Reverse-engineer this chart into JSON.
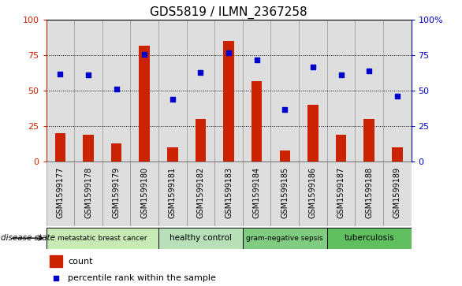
{
  "title": "GDS5819 / ILMN_2367258",
  "samples": [
    "GSM1599177",
    "GSM1599178",
    "GSM1599179",
    "GSM1599180",
    "GSM1599181",
    "GSM1599182",
    "GSM1599183",
    "GSM1599184",
    "GSM1599185",
    "GSM1599186",
    "GSM1599187",
    "GSM1599188",
    "GSM1599189"
  ],
  "counts": [
    20,
    19,
    13,
    82,
    10,
    30,
    85,
    57,
    8,
    40,
    19,
    30,
    10
  ],
  "percentiles": [
    62,
    61,
    51,
    76,
    44,
    63,
    77,
    72,
    37,
    67,
    61,
    64,
    46
  ],
  "disease_groups": [
    {
      "label": "metastatic breast cancer",
      "start": 0,
      "end": 4,
      "color": "#c8eab4"
    },
    {
      "label": "healthy control",
      "start": 4,
      "end": 7,
      "color": "#b8e0b8"
    },
    {
      "label": "gram-negative sepsis",
      "start": 7,
      "end": 10,
      "color": "#80cc80"
    },
    {
      "label": "tuberculosis",
      "start": 10,
      "end": 13,
      "color": "#60c060"
    }
  ],
  "bar_color": "#cc2200",
  "dot_color": "#0000cc",
  "ylim": [
    0,
    100
  ],
  "yticks": [
    0,
    25,
    50,
    75,
    100
  ],
  "grid_lines": [
    25,
    50,
    75
  ],
  "bg_color": "#dedede",
  "plot_bg": "white",
  "disease_state_label": "disease state",
  "legend_count_label": "count",
  "legend_percentile_label": "percentile rank within the sample",
  "title_fontsize": 11,
  "tick_fontsize": 7,
  "axis_fontsize": 8
}
